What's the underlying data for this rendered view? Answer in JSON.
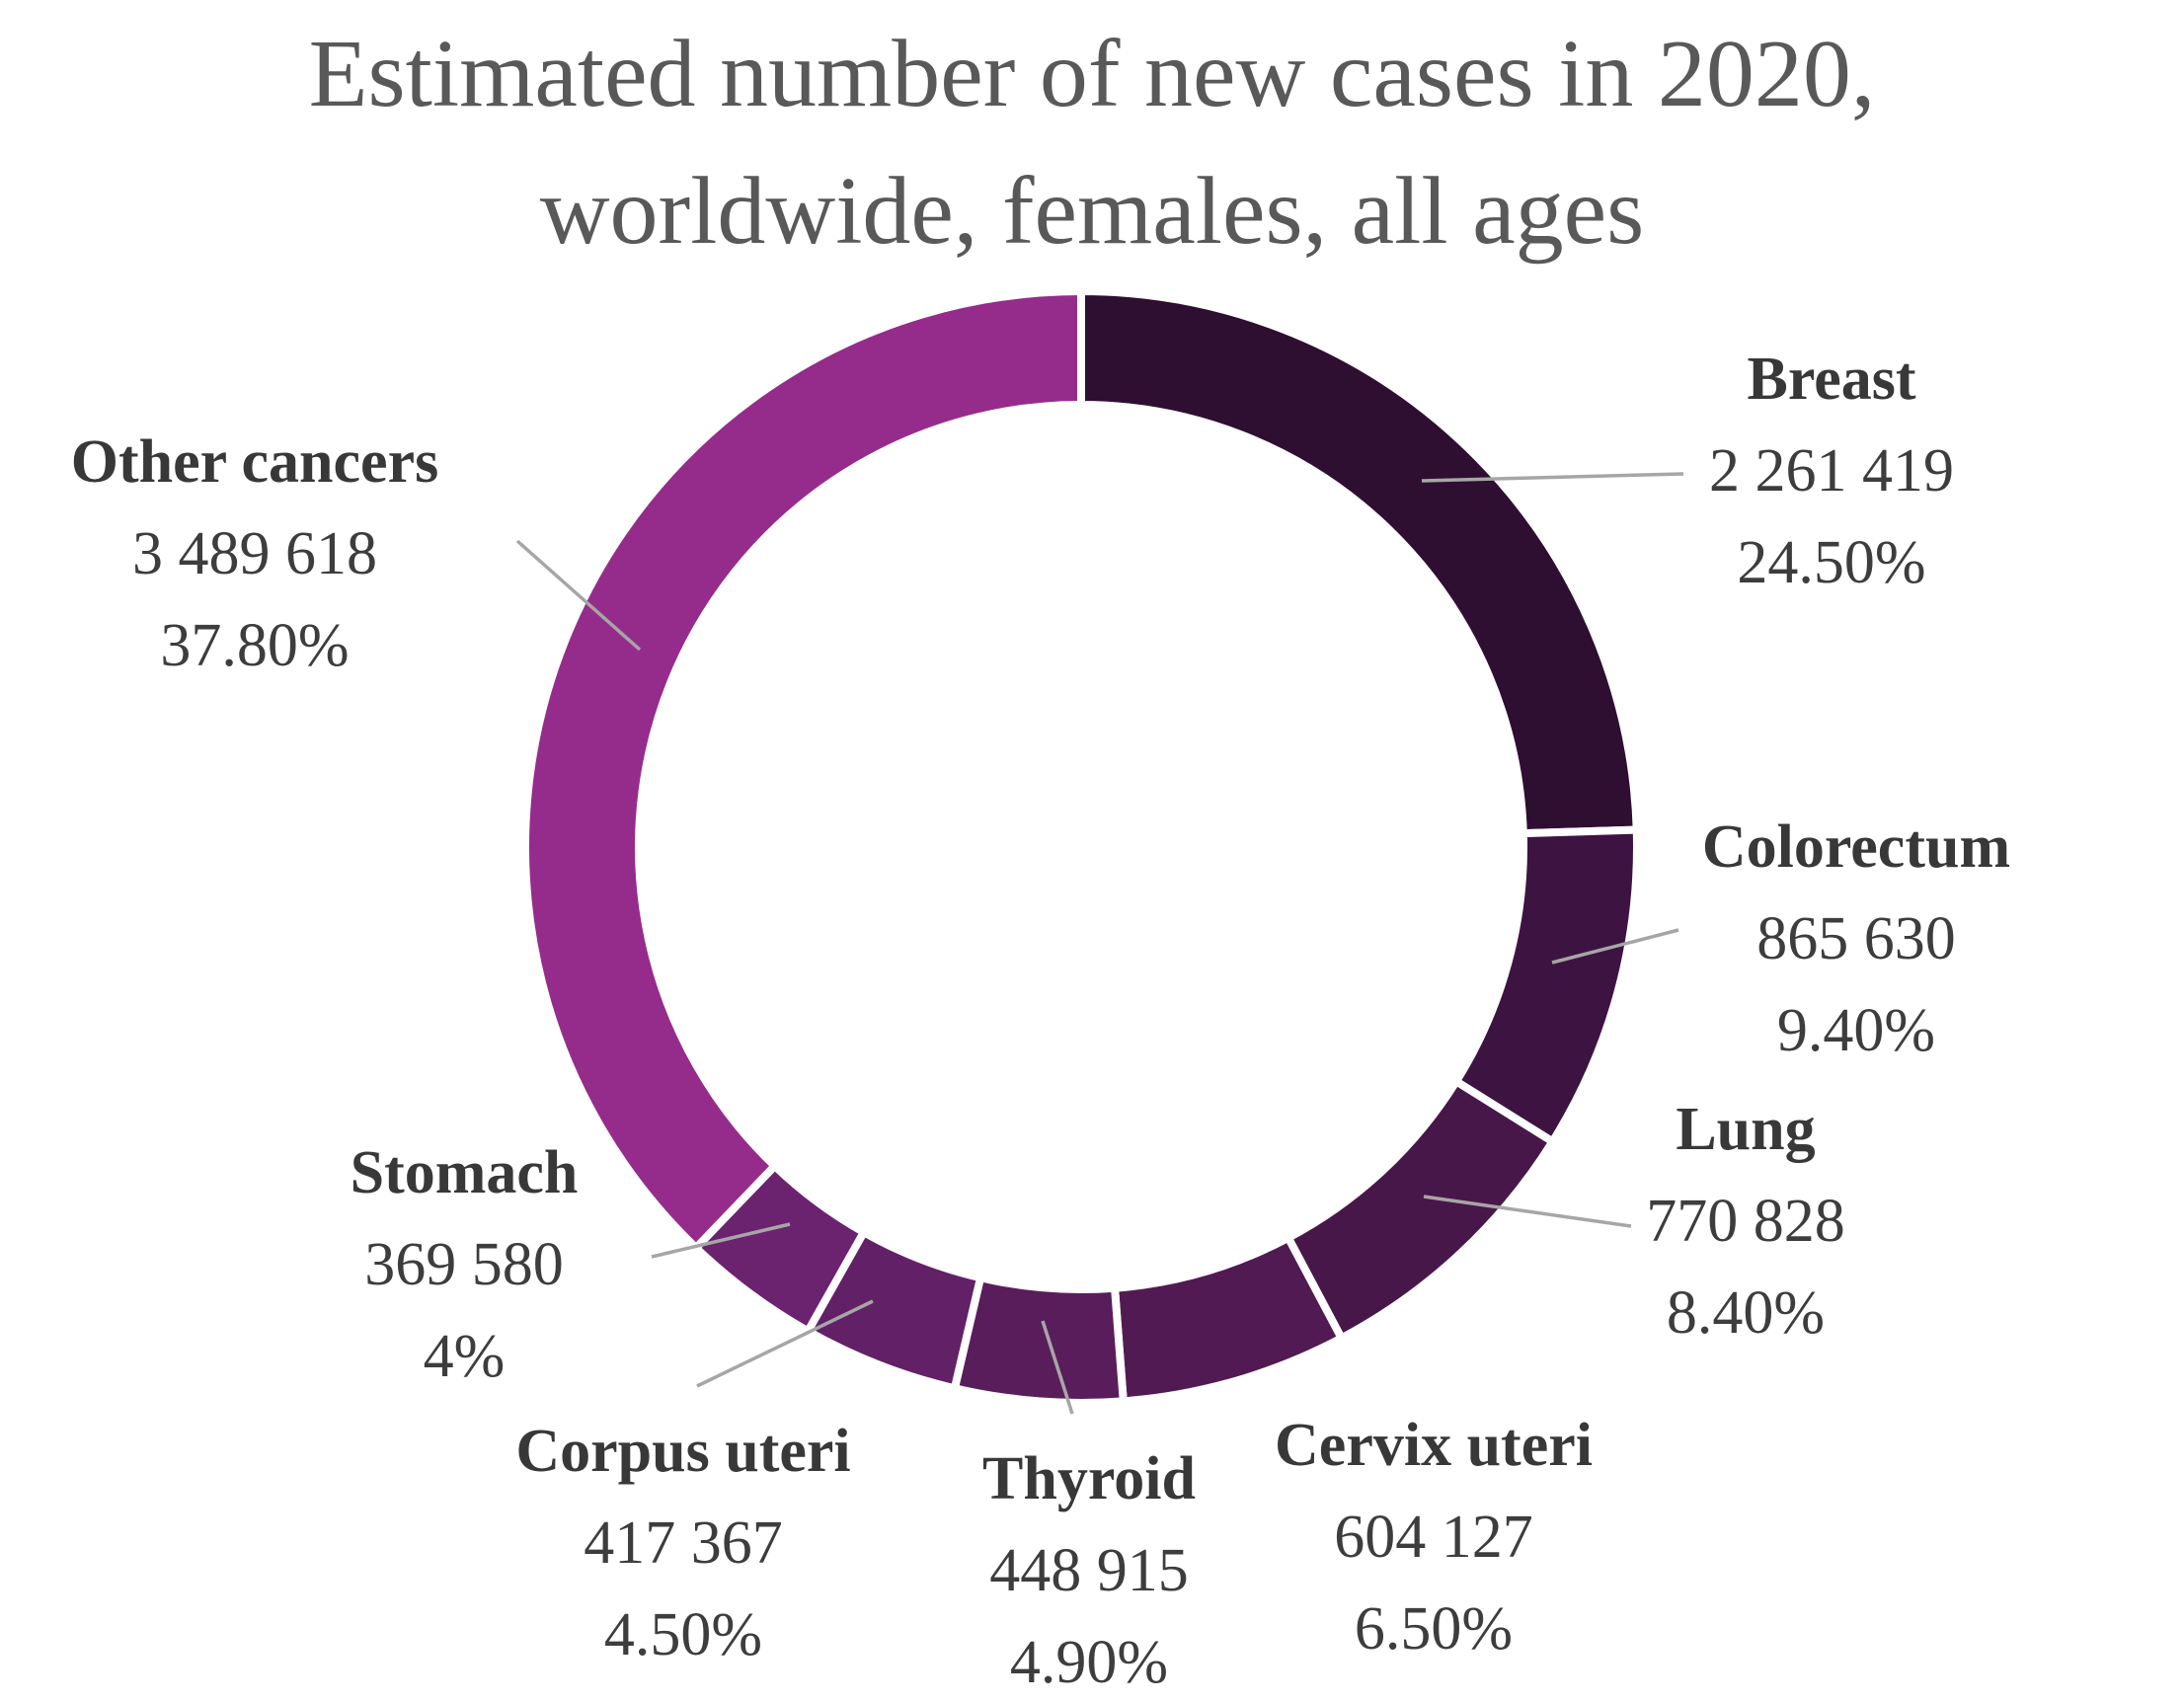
{
  "title": {
    "line1": "Estimated number of new cases in 2020,",
    "line2": "worldwide, females, all ages"
  },
  "chart_data": {
    "type": "pie",
    "subtype": "donut",
    "title": "Estimated number of new cases in 2020, worldwide, females, all ages",
    "unit": "new cases",
    "start_angle_deg": 0,
    "direction": "clockwise",
    "legend": "none",
    "leader_line_color": "#a6a6a6",
    "slices": [
      {
        "label": "Breast",
        "value": 2261419,
        "value_label": "2 261 419",
        "percent": 24.5,
        "percent_label": "24.50%",
        "color": "#2e0e31"
      },
      {
        "label": "Colorectum",
        "value": 865630,
        "value_label": "865 630",
        "percent": 9.4,
        "percent_label": "9.40%",
        "color": "#3c1341"
      },
      {
        "label": "Lung",
        "value": 770828,
        "value_label": "770 828",
        "percent": 8.4,
        "percent_label": "8.40%",
        "color": "#481749"
      },
      {
        "label": "Cervix uteri",
        "value": 604127,
        "value_label": "604 127",
        "percent": 6.5,
        "percent_label": "6.50%",
        "color": "#521a53"
      },
      {
        "label": "Thyroid",
        "value": 448915,
        "value_label": "448 915",
        "percent": 4.9,
        "percent_label": "4.90%",
        "color": "#5a1d5c"
      },
      {
        "label": "Corpus uteri",
        "value": 417367,
        "value_label": "417 367",
        "percent": 4.5,
        "percent_label": "4.50%",
        "color": "#622066"
      },
      {
        "label": "Stomach",
        "value": 369580,
        "value_label": "369 580",
        "percent": 4.0,
        "percent_label": "4%",
        "color": "#6b226f"
      },
      {
        "label": "Other cancers",
        "value": 3489618,
        "value_label": "3 489 618",
        "percent": 37.8,
        "percent_label": "37.80%",
        "color": "#952c8c"
      }
    ]
  }
}
